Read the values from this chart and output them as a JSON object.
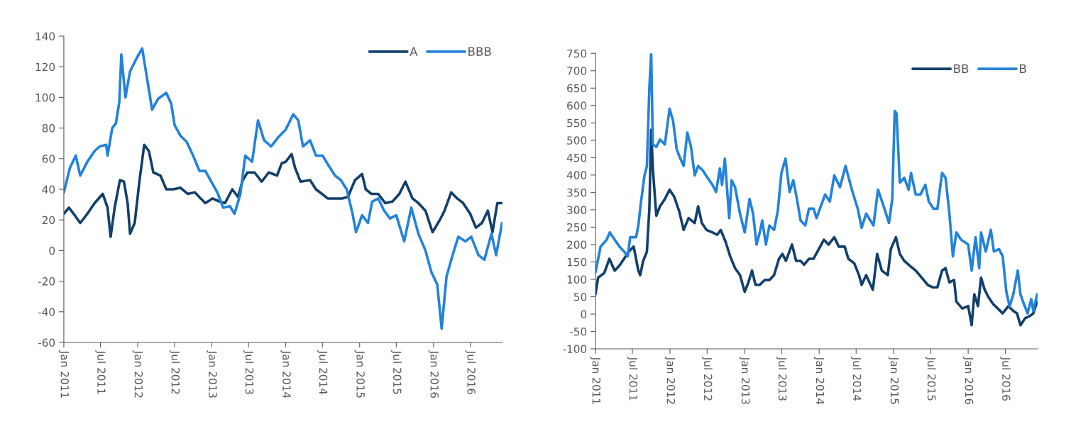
{
  "chart_data": [
    {
      "type": "line",
      "xlim": [
        "2011-01-01",
        "2016-12-06"
      ],
      "ylim": [
        -60,
        140
      ],
      "yticks": [
        -60,
        -40,
        -20,
        0,
        20,
        40,
        60,
        80,
        100,
        120,
        140
      ],
      "xticks": [
        {
          "value": "2011-01-01",
          "label": "Jan 2011"
        },
        {
          "value": "2011-07-01",
          "label": "Jul 2011"
        },
        {
          "value": "2012-01-01",
          "label": "Jan 2012"
        },
        {
          "value": "2012-07-01",
          "label": "Jul 2012"
        },
        {
          "value": "2013-01-01",
          "label": "Jan 2013"
        },
        {
          "value": "2013-07-01",
          "label": "Jul 2013"
        },
        {
          "value": "2014-01-01",
          "label": "Jan 2014"
        },
        {
          "value": "2014-07-01",
          "label": "Jul 2014"
        },
        {
          "value": "2015-01-01",
          "label": "Jan 2015"
        },
        {
          "value": "2015-07-01",
          "label": "Jul 2015"
        },
        {
          "value": "2016-01-01",
          "label": "Jan 2016"
        },
        {
          "value": "2016-07-01",
          "label": "Jul 2016"
        }
      ],
      "legend": "top right",
      "grid": false,
      "marker": "none",
      "line_style": "solid",
      "series": [
        {
          "name": "A",
          "color": "#123f6b",
          "x": [
            "2011-01-01",
            "2011-01-26",
            "2011-02-24",
            "2011-03-23",
            "2011-04-27",
            "2011-06-02",
            "2011-07-12",
            "2011-08-05",
            "2011-08-20",
            "2011-09-09",
            "2011-10-05",
            "2011-10-25",
            "2011-11-12",
            "2011-11-24",
            "2011-12-17",
            "2012-01-09",
            "2012-02-02",
            "2012-02-25",
            "2012-03-18",
            "2012-04-22",
            "2012-05-21",
            "2012-06-25",
            "2012-07-30",
            "2012-09-04",
            "2012-10-09",
            "2012-11-07",
            "2012-11-30",
            "2013-01-04",
            "2013-02-08",
            "2013-03-07",
            "2013-04-12",
            "2013-05-10",
            "2013-06-03",
            "2013-06-26",
            "2013-07-31",
            "2013-09-04",
            "2013-10-09",
            "2013-11-19",
            "2013-12-12",
            "2014-01-01",
            "2014-01-30",
            "2014-02-16",
            "2014-03-15",
            "2014-05-01",
            "2014-05-30",
            "2014-06-29",
            "2014-07-27",
            "2014-09-01",
            "2014-10-06",
            "2014-11-04",
            "2014-12-09",
            "2015-01-13",
            "2015-01-31",
            "2015-02-28",
            "2015-04-03",
            "2015-05-07",
            "2015-06-12",
            "2015-07-16",
            "2015-08-15",
            "2015-09-19",
            "2015-10-18",
            "2015-11-22",
            "2015-12-27",
            "2016-02-01",
            "2016-02-24",
            "2016-03-28",
            "2016-04-27",
            "2016-05-26",
            "2016-06-30",
            "2016-07-28",
            "2016-08-27",
            "2016-09-25",
            "2016-10-18",
            "2016-11-11",
            "2016-12-04"
          ],
          "values": [
            24,
            28,
            23,
            18,
            24,
            31,
            37,
            28,
            9,
            28,
            46,
            45,
            31,
            11,
            18,
            45,
            69,
            65,
            51,
            49,
            40,
            40,
            41,
            37,
            38,
            34,
            31,
            34,
            32,
            31,
            40,
            35,
            46,
            51,
            51,
            45,
            51,
            49,
            57,
            58,
            63,
            54,
            45,
            46,
            40,
            37,
            34,
            34,
            34,
            35,
            46,
            50,
            40,
            37,
            37,
            31,
            32,
            37,
            45,
            34,
            31,
            26,
            12,
            20,
            26,
            38,
            34,
            31,
            24,
            15,
            18,
            26,
            12,
            31,
            31
          ]
        },
        {
          "name": "BBB",
          "color": "#2382db",
          "x": [
            "2011-01-01",
            "2011-01-31",
            "2011-03-01",
            "2011-03-23",
            "2011-04-27",
            "2011-06-02",
            "2011-06-27",
            "2011-07-29",
            "2011-08-05",
            "2011-08-28",
            "2011-09-15",
            "2011-10-02",
            "2011-10-12",
            "2011-11-01",
            "2011-11-24",
            "2011-12-28",
            "2012-01-23",
            "2012-02-14",
            "2012-03-12",
            "2012-04-10",
            "2012-05-21",
            "2012-06-14",
            "2012-07-01",
            "2012-07-30",
            "2012-08-29",
            "2012-09-27",
            "2012-11-01",
            "2012-11-30",
            "2012-12-29",
            "2013-01-28",
            "2013-02-26",
            "2013-03-31",
            "2013-04-23",
            "2013-05-22",
            "2013-06-15",
            "2013-07-19",
            "2013-08-17",
            "2013-09-16",
            "2013-10-21",
            "2013-11-25",
            "2014-01-01",
            "2014-02-07",
            "2014-03-04",
            "2014-03-27",
            "2014-05-01",
            "2014-05-30",
            "2014-07-02",
            "2014-08-03",
            "2014-09-01",
            "2014-09-30",
            "2014-10-29",
            "2014-11-27",
            "2014-12-14",
            "2015-01-13",
            "2015-02-11",
            "2015-03-04",
            "2015-04-03",
            "2015-05-02",
            "2015-05-31",
            "2015-07-01",
            "2015-08-09",
            "2015-09-13",
            "2015-10-18",
            "2015-11-22",
            "2015-12-21",
            "2016-01-19",
            "2016-02-10",
            "2016-03-05",
            "2016-04-04",
            "2016-05-02",
            "2016-06-07",
            "2016-07-05",
            "2016-08-10",
            "2016-09-08",
            "2016-10-13",
            "2016-11-05",
            "2016-12-04"
          ],
          "values": [
            38,
            54,
            62,
            49,
            58,
            65,
            68,
            69,
            62,
            80,
            83,
            97,
            128,
            100,
            117,
            126,
            132,
            114,
            92,
            99,
            103,
            96,
            82,
            75,
            71,
            63,
            52,
            52,
            45,
            38,
            28,
            29,
            24,
            37,
            62,
            58,
            85,
            72,
            68,
            74,
            79,
            89,
            85,
            68,
            72,
            62,
            62,
            55,
            49,
            46,
            40,
            24,
            12,
            23,
            18,
            32,
            34,
            26,
            21,
            23,
            6,
            28,
            11,
            0,
            -14,
            -22,
            -51,
            -17,
            -3,
            9,
            6,
            9,
            -3,
            -6,
            11,
            -3,
            18
          ]
        }
      ]
    },
    {
      "type": "line",
      "xlim": [
        "2011-01-01",
        "2016-12-06"
      ],
      "ylim": [
        -100,
        750
      ],
      "yticks": [
        -100,
        -50,
        0,
        50,
        100,
        150,
        200,
        250,
        300,
        350,
        400,
        450,
        500,
        550,
        600,
        650,
        700,
        750
      ],
      "xticks": [
        {
          "value": "2011-01-01",
          "label": "Jan 2011"
        },
        {
          "value": "2011-07-01",
          "label": "Jul 2011"
        },
        {
          "value": "2012-01-01",
          "label": "Jan 2012"
        },
        {
          "value": "2012-07-01",
          "label": "Jul 2012"
        },
        {
          "value": "2013-01-01",
          "label": "Jan 2013"
        },
        {
          "value": "2013-07-01",
          "label": "Jul 2013"
        },
        {
          "value": "2014-01-01",
          "label": "Jan 2014"
        },
        {
          "value": "2014-07-01",
          "label": "Jul 2014"
        },
        {
          "value": "2015-01-01",
          "label": "Jan 2015"
        },
        {
          "value": "2015-07-01",
          "label": "Jul 2015"
        },
        {
          "value": "2016-01-01",
          "label": "Jan 2016"
        },
        {
          "value": "2016-07-01",
          "label": "Jul 2016"
        }
      ],
      "legend": "top right",
      "grid": false,
      "marker": "none",
      "line_style": "solid",
      "series": [
        {
          "name": "BB",
          "color": "#123f6b",
          "x": [
            "2011-01-01",
            "2011-01-14",
            "2011-02-13",
            "2011-03-10",
            "2011-04-05",
            "2011-04-28",
            "2011-05-21",
            "2011-06-14",
            "2011-07-07",
            "2011-07-30",
            "2011-08-08",
            "2011-08-23",
            "2011-09-10",
            "2011-09-22",
            "2011-10-01",
            "2011-10-09",
            "2011-10-26",
            "2011-11-13",
            "2011-12-07",
            "2011-12-30",
            "2012-01-22",
            "2012-02-15",
            "2012-03-08",
            "2012-04-01",
            "2012-05-01",
            "2012-05-18",
            "2012-06-05",
            "2012-06-28",
            "2012-07-27",
            "2012-08-19",
            "2012-09-06",
            "2012-09-30",
            "2012-10-22",
            "2012-11-15",
            "2012-12-09",
            "2013-01-01",
            "2013-01-19",
            "2013-02-06",
            "2013-02-23",
            "2013-03-16",
            "2013-04-09",
            "2013-05-02",
            "2013-05-25",
            "2013-06-18",
            "2013-07-05",
            "2013-07-22",
            "2013-08-21",
            "2013-09-10",
            "2013-10-02",
            "2013-10-19",
            "2013-11-12",
            "2013-12-04",
            "2014-01-24",
            "2014-02-16",
            "2014-03-16",
            "2014-04-07",
            "2014-05-06",
            "2014-05-24",
            "2014-06-22",
            "2014-07-15",
            "2014-07-28",
            "2014-08-19",
            "2014-09-21",
            "2014-10-12",
            "2014-11-04",
            "2014-12-03",
            "2014-12-18",
            "2015-01-12",
            "2015-01-31",
            "2015-02-22",
            "2015-03-21",
            "2015-04-19",
            "2015-05-18",
            "2015-06-17",
            "2015-07-10",
            "2015-08-03",
            "2015-08-26",
            "2015-09-12",
            "2015-10-01",
            "2015-10-24",
            "2015-11-04",
            "2015-12-03",
            "2016-01-01",
            "2016-01-18",
            "2016-01-31",
            "2016-02-18",
            "2016-03-04",
            "2016-03-22",
            "2016-04-08",
            "2016-05-02",
            "2016-05-25",
            "2016-06-18",
            "2016-07-16",
            "2016-08-09",
            "2016-08-27",
            "2016-09-13",
            "2016-10-06",
            "2016-10-31",
            "2016-11-15",
            "2016-12-04"
          ],
          "values": [
            57,
            105,
            118,
            159,
            125,
            139,
            159,
            180,
            194,
            125,
            112,
            153,
            180,
            303,
            530,
            419,
            283,
            310,
            331,
            358,
            337,
            296,
            242,
            276,
            262,
            310,
            262,
            242,
            235,
            228,
            242,
            207,
            166,
            132,
            112,
            64,
            91,
            125,
            84,
            84,
            98,
            98,
            112,
            159,
            173,
            153,
            200,
            153,
            153,
            142,
            159,
            159,
            214,
            200,
            221,
            194,
            194,
            159,
            146,
            112,
            84,
            112,
            70,
            173,
            125,
            112,
            187,
            221,
            173,
            153,
            139,
            125,
            105,
            84,
            77,
            77,
            125,
            132,
            91,
            98,
            36,
            16,
            23,
            -32,
            57,
            23,
            105,
            70,
            50,
            29,
            16,
            2,
            23,
            9,
            2,
            -32,
            -12,
            -5,
            2,
            36
          ]
        },
        {
          "name": "B",
          "color": "#2382db",
          "x": [
            "2011-01-01",
            "2011-01-26",
            "2011-02-25",
            "2011-03-12",
            "2011-04-05",
            "2011-04-28",
            "2011-05-21",
            "2011-06-08",
            "2011-06-20",
            "2011-07-19",
            "2011-07-30",
            "2011-08-11",
            "2011-08-29",
            "2011-09-10",
            "2011-09-22",
            "2011-10-01",
            "2011-10-09",
            "2011-10-26",
            "2011-11-13",
            "2011-12-07",
            "2011-12-30",
            "2012-01-16",
            "2012-02-03",
            "2012-02-21",
            "2012-03-08",
            "2012-03-26",
            "2012-04-13",
            "2012-05-01",
            "2012-05-18",
            "2012-06-10",
            "2012-07-03",
            "2012-07-27",
            "2012-08-14",
            "2012-09-01",
            "2012-09-12",
            "2012-09-26",
            "2012-10-17",
            "2012-10-29",
            "2012-11-15",
            "2012-12-09",
            "2013-01-01",
            "2013-01-25",
            "2013-02-11",
            "2013-02-28",
            "2013-03-16",
            "2013-03-28",
            "2013-04-15",
            "2013-05-02",
            "2013-05-25",
            "2013-06-12",
            "2013-06-30",
            "2013-07-20",
            "2013-08-09",
            "2013-08-27",
            "2013-09-14",
            "2013-10-02",
            "2013-10-25",
            "2013-11-12",
            "2013-12-05",
            "2013-12-19",
            "2014-01-30",
            "2014-02-22",
            "2014-03-16",
            "2014-04-13",
            "2014-05-10",
            "2014-06-10",
            "2014-07-09",
            "2014-07-28",
            "2014-08-19",
            "2014-09-24",
            "2014-10-16",
            "2014-11-09",
            "2014-12-09",
            "2014-12-25",
            "2015-01-06",
            "2015-01-15",
            "2015-01-31",
            "2015-02-22",
            "2015-03-15",
            "2015-03-27",
            "2015-04-19",
            "2015-05-12",
            "2015-06-05",
            "2015-06-22",
            "2015-07-15",
            "2015-08-03",
            "2015-08-26",
            "2015-09-12",
            "2015-10-01",
            "2015-10-18",
            "2015-11-04",
            "2015-11-27",
            "2016-01-01",
            "2016-01-18",
            "2016-02-06",
            "2016-02-24",
            "2016-03-04",
            "2016-03-27",
            "2016-04-21",
            "2016-05-06",
            "2016-05-31",
            "2016-06-18",
            "2016-07-06",
            "2016-07-22",
            "2016-08-09",
            "2016-08-31",
            "2016-09-13",
            "2016-09-30",
            "2016-10-18",
            "2016-11-05",
            "2016-11-15",
            "2016-12-04"
          ],
          "values": [
            120,
            194,
            214,
            235,
            214,
            194,
            180,
            166,
            221,
            221,
            255,
            317,
            399,
            426,
            652,
            750,
            488,
            481,
            502,
            488,
            591,
            556,
            474,
            447,
            426,
            522,
            481,
            399,
            426,
            413,
            392,
            372,
            351,
            419,
            372,
            447,
            276,
            385,
            365,
            289,
            235,
            331,
            289,
            200,
            235,
            269,
            200,
            255,
            242,
            296,
            406,
            447,
            351,
            385,
            331,
            269,
            255,
            303,
            303,
            276,
            344,
            324,
            399,
            365,
            426,
            358,
            303,
            248,
            289,
            255,
            358,
            317,
            262,
            331,
            584,
            577,
            378,
            392,
            358,
            406,
            344,
            344,
            372,
            324,
            303,
            303,
            406,
            392,
            289,
            166,
            235,
            214,
            200,
            125,
            221,
            132,
            235,
            180,
            242,
            180,
            187,
            166,
            64,
            22,
            57,
            125,
            57,
            29,
            2,
            43,
            9,
            57
          ]
        }
      ]
    }
  ]
}
